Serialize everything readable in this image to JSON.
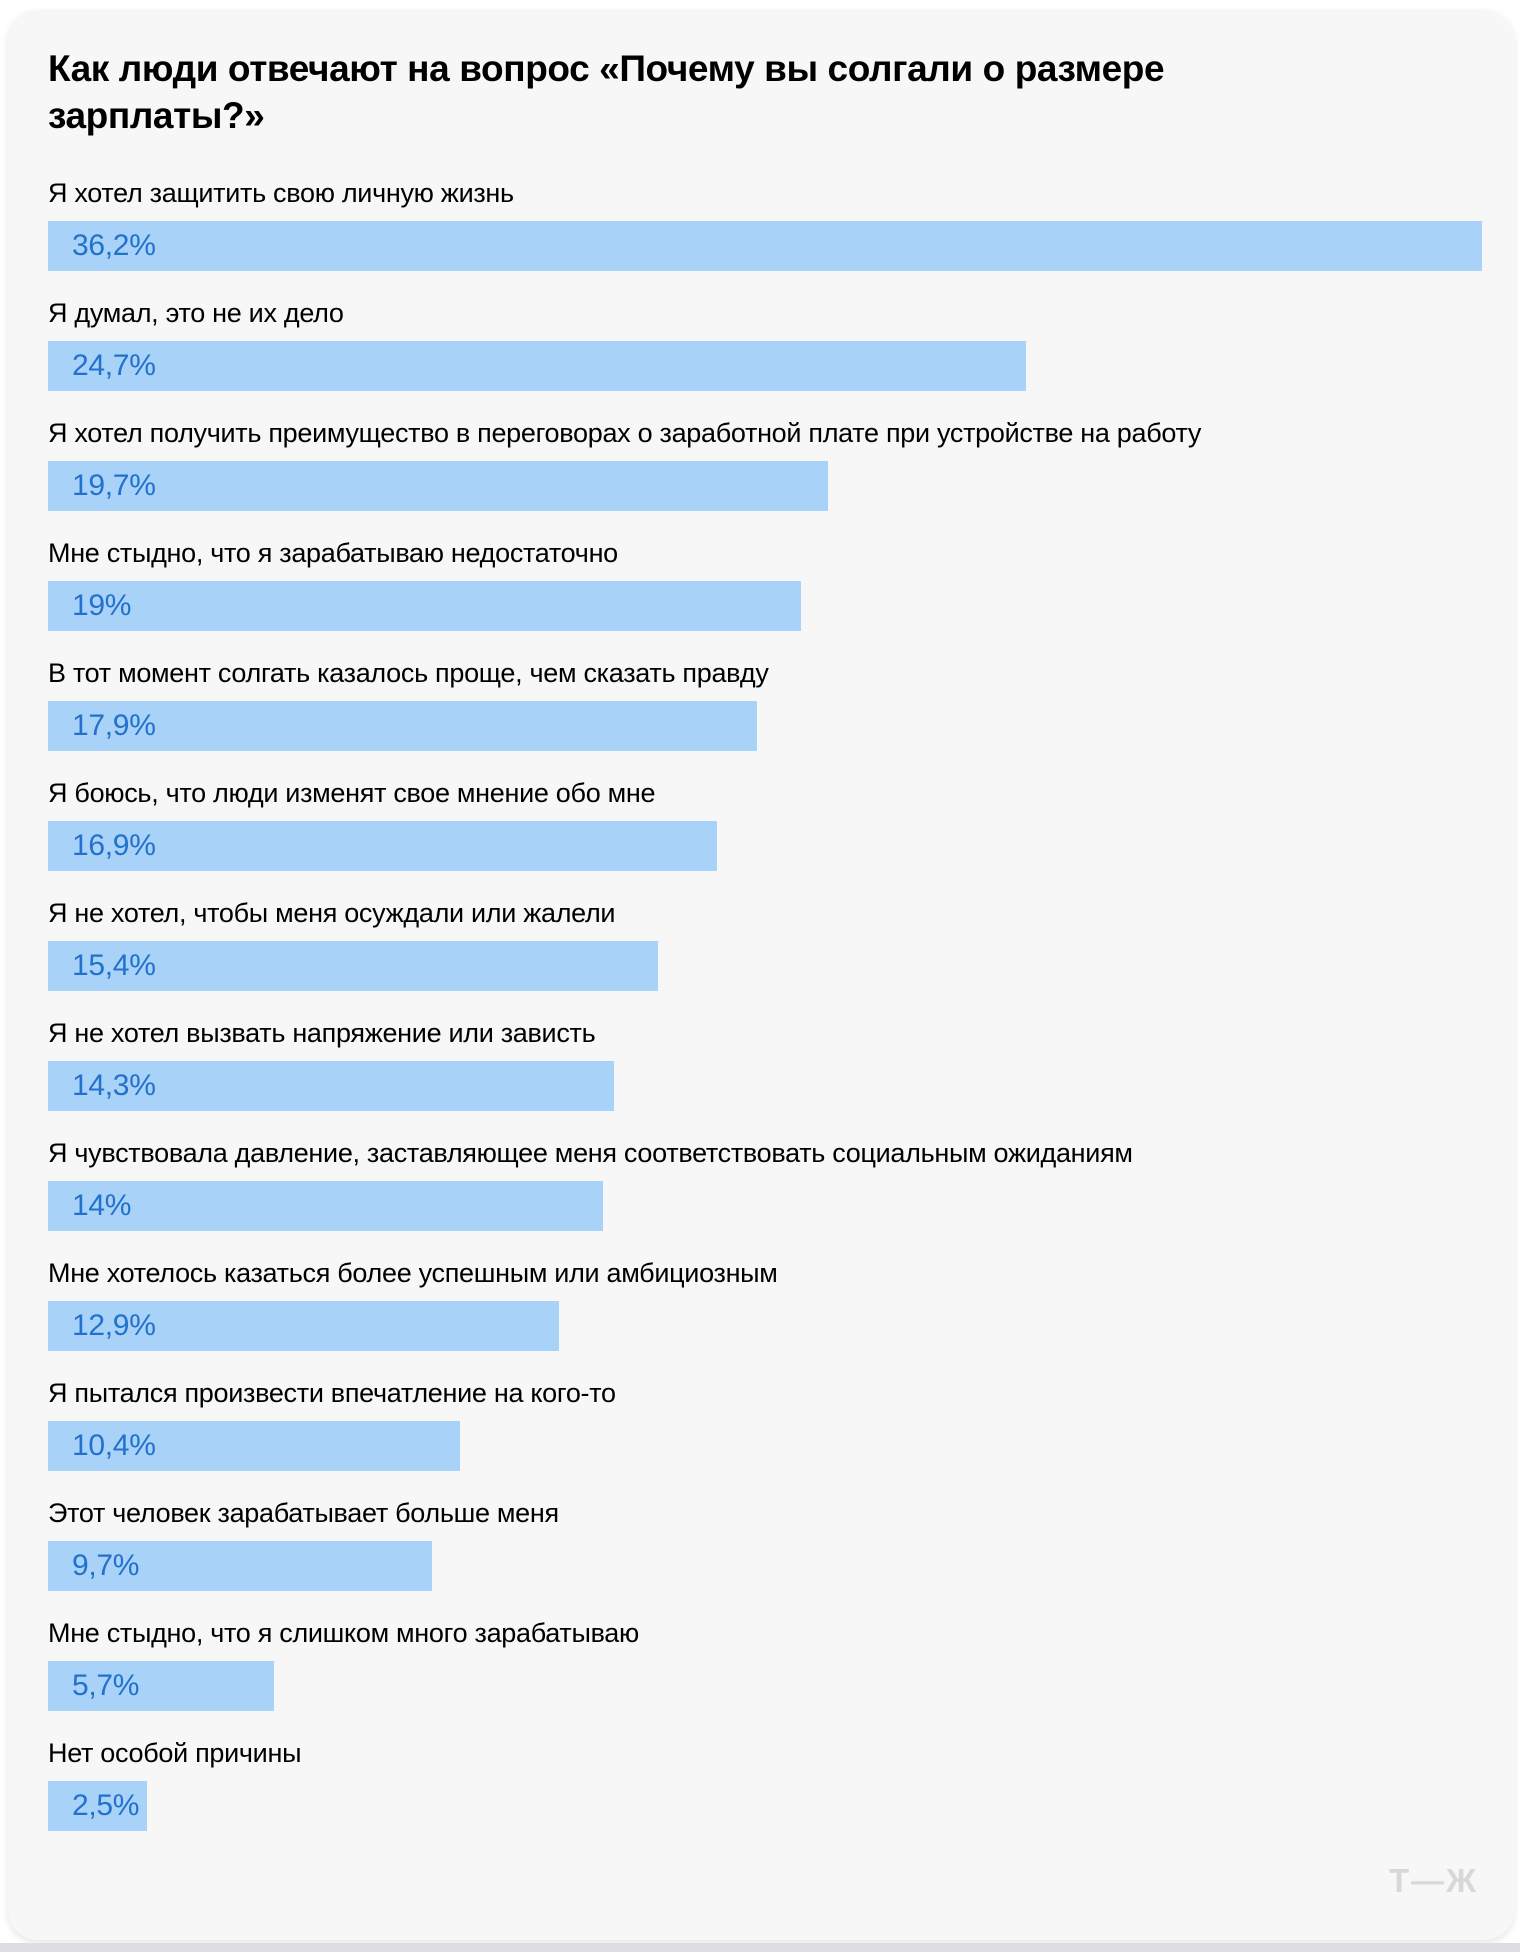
{
  "page": {
    "logo_text": "Т—Ж"
  },
  "colors": {
    "page_bg": "#ffffff",
    "card_bg": "#f7f7f8",
    "bar": "#a9d2f8",
    "value_text": "#2271cc",
    "label_text": "#000000",
    "logo": "#d8d8d8"
  },
  "chart_data": {
    "type": "bar",
    "orientation": "horizontal",
    "title": "Как люди отвечают на вопрос «Почему вы солгали о размере зарплаты?»",
    "value_unit": "%",
    "value_axis_max": 36.2,
    "grid": false,
    "legend": false,
    "categories": [
      "Я хотел защитить свою личную жизнь",
      "Я думал, это не их дело",
      "Я хотел получить преимущество в переговорах о заработной плате при устройстве на работу",
      "Мне стыдно, что я зарабатываю недостаточно",
      "В тот момент солгать казалось проще, чем сказать правду",
      "Я боюсь, что люди изменят свое мнение обо мне",
      "Я не хотел, чтобы меня осуждали или жалели",
      "Я не хотел вызвать напряжение или зависть",
      "Я чувствовала давление, заставляющее меня соответствовать социальным ожиданиям",
      "Мне хотелось казаться более успешным или амбициозным",
      "Я пытался произвести впечатление на кого-то",
      "Этот человек зарабатывает больше меня",
      "Мне стыдно, что я слишком много зарабатываю",
      "Нет особой причины"
    ],
    "values": [
      36.2,
      24.7,
      19.7,
      19,
      17.9,
      16.9,
      15.4,
      14.3,
      14,
      12.9,
      10.4,
      9.7,
      5.7,
      2.5
    ],
    "value_labels": [
      "36,2%",
      "24,7%",
      "19,7%",
      "19%",
      "17,9%",
      "16,9%",
      "15,4%",
      "14,3%",
      "14%",
      "12,9%",
      "10,4%",
      "9,7%",
      "5,7%",
      "2,5%"
    ]
  }
}
